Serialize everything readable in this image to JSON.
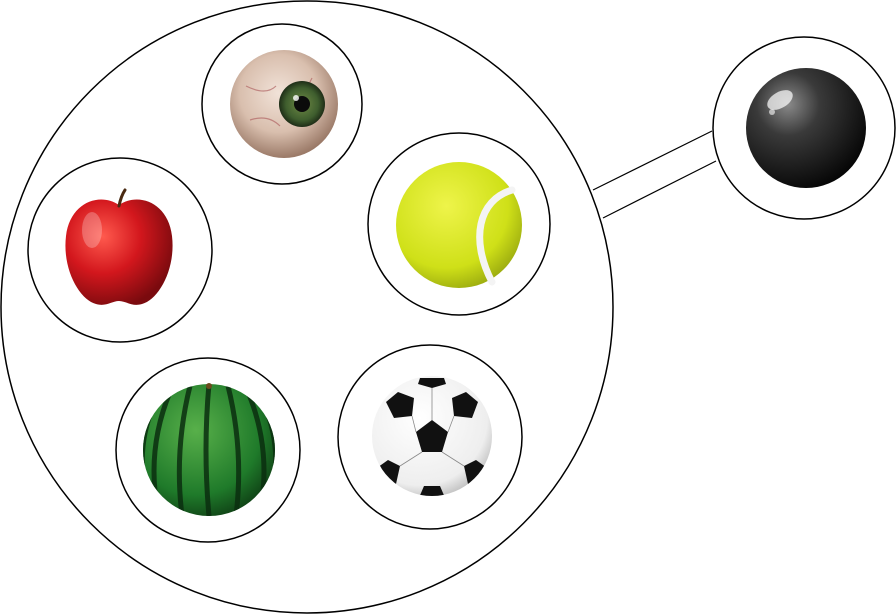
{
  "diagram": {
    "big_circle": {
      "stroke": "#000000",
      "fill": "#ffffff"
    },
    "connector": {
      "stroke": "#000000"
    },
    "items": [
      {
        "id": "eyeball",
        "label": ""
      },
      {
        "id": "apple",
        "label": ""
      },
      {
        "id": "tennis-ball",
        "label": ""
      },
      {
        "id": "watermelon",
        "label": ""
      },
      {
        "id": "soccer-ball",
        "label": ""
      },
      {
        "id": "black-sphere",
        "label": ""
      }
    ],
    "colors": {
      "apple": "#c8141a",
      "tennis_ball": "#d6e51c",
      "watermelon": "#1f7a2a",
      "eye_iris": "#3f5e2e",
      "sphere": "#1a1a1a"
    }
  }
}
